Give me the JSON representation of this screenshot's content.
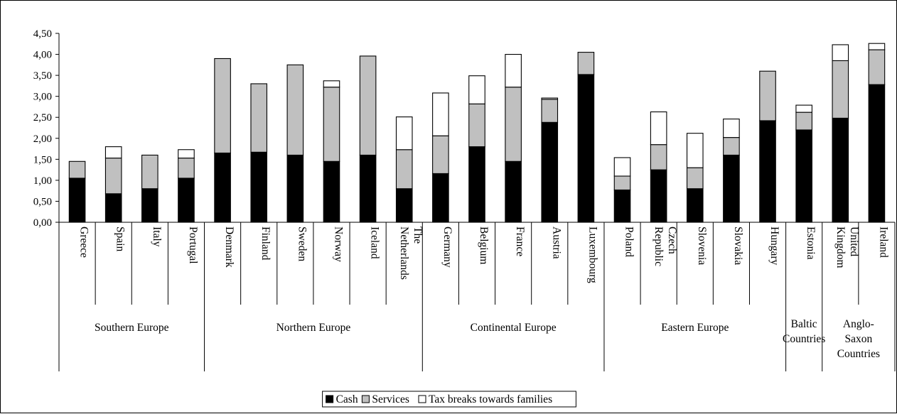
{
  "chart_data": {
    "type": "bar",
    "stacked": true,
    "title": "",
    "xlabel": "",
    "ylabel": "",
    "ylim": [
      0,
      4.5
    ],
    "yticks": [
      "0,00",
      "0,50",
      "1,00",
      "1,50",
      "2,00",
      "2,50",
      "3,00",
      "3,50",
      "4,00",
      "4,50"
    ],
    "grid": false,
    "legend_position": "bottom",
    "categories": [
      [
        "Greece"
      ],
      [
        "Spain"
      ],
      [
        "Italy"
      ],
      [
        "Portugal"
      ],
      [
        "Denmark"
      ],
      [
        "Finland"
      ],
      [
        "Sweden"
      ],
      [
        "Norway"
      ],
      [
        "Iceland"
      ],
      [
        "The",
        "Netherlands"
      ],
      [
        "Germany"
      ],
      [
        "Belgium"
      ],
      [
        "France"
      ],
      [
        "Austria"
      ],
      [
        "Luxembourg"
      ],
      [
        "Poland"
      ],
      [
        "Czech",
        "Republic"
      ],
      [
        "Slovenia"
      ],
      [
        "Slovakia"
      ],
      [
        "Hungary"
      ],
      [
        "Estonia"
      ],
      [
        "United",
        "Kingdom"
      ],
      [
        "Ireland"
      ]
    ],
    "groups": [
      {
        "label": [
          "Southern Europe"
        ],
        "count": 4
      },
      {
        "label": [
          "Northern Europe"
        ],
        "count": 6
      },
      {
        "label": [
          "Continental Europe"
        ],
        "count": 5
      },
      {
        "label": [
          "Eastern Europe"
        ],
        "count": 5
      },
      {
        "label": [
          "Baltic",
          "Countries"
        ],
        "count": 1
      },
      {
        "label": [
          "Anglo-",
          "Saxon",
          "Countries"
        ],
        "count": 2
      }
    ],
    "series": [
      {
        "name": "Cash",
        "color": "#000000",
        "values": [
          1.05,
          0.68,
          0.8,
          1.05,
          1.65,
          1.67,
          1.6,
          1.45,
          1.6,
          0.8,
          1.16,
          1.8,
          1.45,
          2.38,
          3.52,
          0.77,
          1.25,
          0.8,
          1.6,
          2.42,
          2.2,
          2.48,
          3.28
        ]
      },
      {
        "name": "Services",
        "color": "#c0c0c0",
        "values": [
          0.4,
          0.85,
          0.8,
          0.48,
          2.25,
          1.63,
          2.15,
          1.77,
          2.36,
          0.93,
          0.9,
          1.02,
          1.77,
          0.55,
          0.53,
          0.33,
          0.6,
          0.5,
          0.42,
          1.18,
          0.42,
          1.37,
          0.83
        ]
      },
      {
        "name": "Tax breaks towards families",
        "color": "#ffffff",
        "values": [
          0.0,
          0.27,
          0.0,
          0.2,
          0.0,
          0.0,
          0.0,
          0.15,
          0.0,
          0.78,
          1.02,
          0.67,
          0.78,
          0.03,
          0.0,
          0.44,
          0.78,
          0.82,
          0.44,
          0.0,
          0.17,
          0.38,
          0.15
        ]
      }
    ]
  }
}
